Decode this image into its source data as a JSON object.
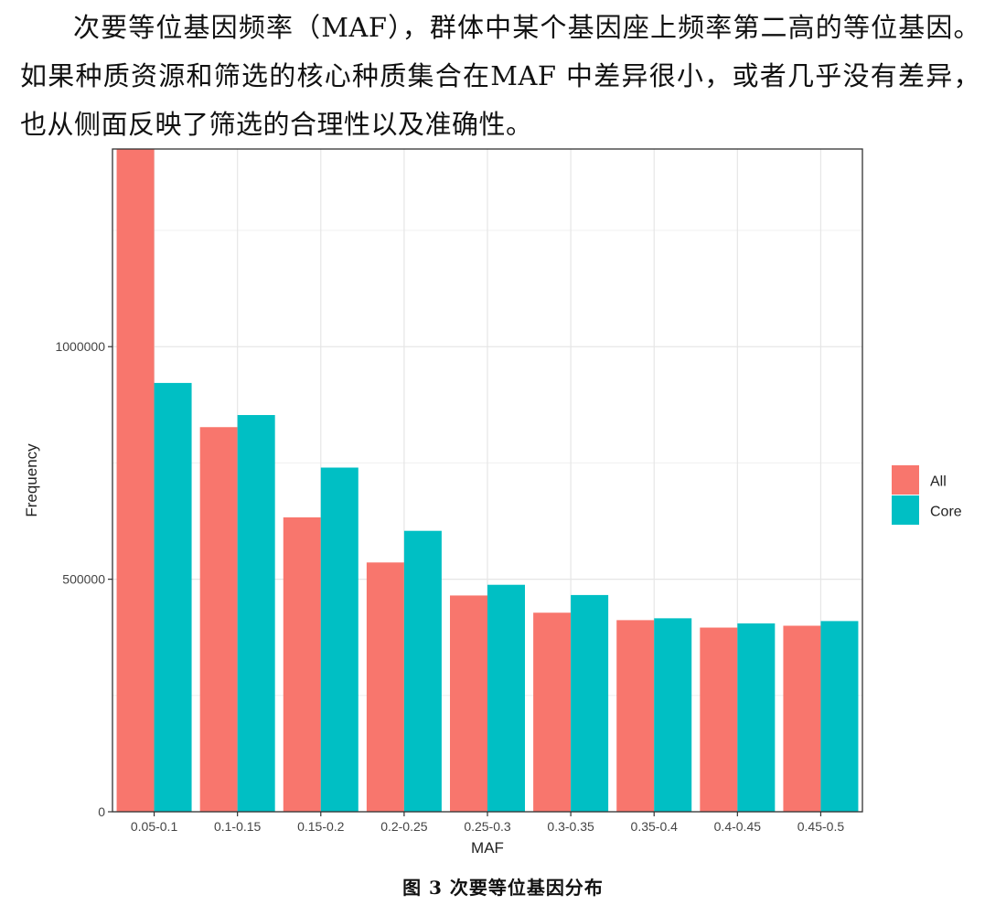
{
  "text": {
    "paragraph": "次要等位基因频率（MAF），群体中某个基因座上频率第二高的等位基因。如果种质资源和筛选的核心种质集合在MAF 中差异很小，或者几乎没有差异，也从侧面反映了筛选的合理性以及准确性。",
    "caption": "图 3 次要等位基因分布"
  },
  "chart_data": {
    "type": "bar",
    "categories": [
      "0.05-0.1",
      "0.1-0.15",
      "0.15-0.2",
      "0.2-0.25",
      "0.25-0.3",
      "0.3-0.35",
      "0.35-0.4",
      "0.4-0.45",
      "0.45-0.5"
    ],
    "series": [
      {
        "name": "All",
        "color": "#F8766D",
        "values": [
          1430000,
          827000,
          633000,
          536000,
          465000,
          428000,
          412000,
          396000,
          400000
        ]
      },
      {
        "name": "Core",
        "color": "#00BFC4",
        "values": [
          922000,
          853000,
          740000,
          604000,
          488000,
          466000,
          416000,
          405000,
          410000
        ]
      }
    ],
    "title": "",
    "xlabel": "MAF",
    "ylabel": "Frequency",
    "ylim": [
      0,
      1425000
    ],
    "yticks": [
      0,
      500000,
      1000000
    ],
    "ytick_labels": [
      "0",
      "500000",
      "1000000"
    ],
    "grid": true,
    "panel_background": "#ffffff",
    "grid_color": "#e6e6e6",
    "legend_position": "right"
  }
}
